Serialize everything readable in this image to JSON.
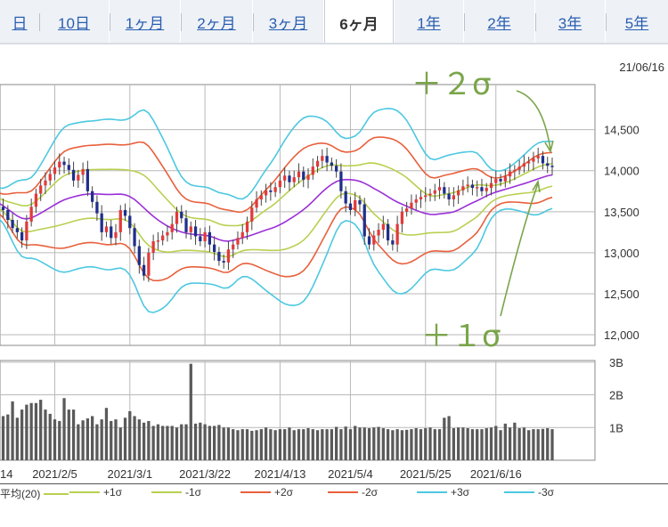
{
  "tabs": [
    {
      "label": "日",
      "active": false
    },
    {
      "label": "10日",
      "active": false
    },
    {
      "label": "1ヶ月",
      "active": false
    },
    {
      "label": "2ヶ月",
      "active": false
    },
    {
      "label": "3ヶ月",
      "active": false
    },
    {
      "label": "6ヶ月",
      "active": true
    },
    {
      "label": "1年",
      "active": false
    },
    {
      "label": "2年",
      "active": false
    },
    {
      "label": "3年",
      "active": false
    },
    {
      "label": "5年",
      "active": false
    }
  ],
  "chart_data": {
    "type": "candlestick",
    "current_date": "21/06/16",
    "y_ticks": [
      "14,500",
      "14,000",
      "13,500",
      "13,000",
      "12,500",
      "12,000"
    ],
    "y_tick_values": [
      14500,
      14000,
      13500,
      13000,
      12500,
      12000
    ],
    "ylim": [
      11870,
      15050
    ],
    "x_tick_labels": [
      "14",
      "2021/2/5",
      "2021/3/1",
      "2021/3/22",
      "2021/4/13",
      "2021/5/4",
      "2021/5/25",
      "2021/6/16"
    ],
    "sessions": 120,
    "x_tick_sessions": [
      0,
      13,
      29,
      45,
      61,
      76,
      92,
      107
    ],
    "close": [
      13650,
      13560,
      13520,
      13400,
      13300,
      13250,
      13150,
      13380,
      13560,
      13720,
      13820,
      13880,
      13960,
      14040,
      14110,
      14070,
      14010,
      13880,
      13950,
      14020,
      13750,
      13620,
      13480,
      13250,
      13320,
      13180,
      13250,
      13520,
      13450,
      13300,
      13080,
      12850,
      12720,
      13000,
      13140,
      13150,
      13210,
      13250,
      13350,
      13500,
      13420,
      13250,
      13320,
      13200,
      13140,
      13250,
      13100,
      13010,
      12900,
      12880,
      13040,
      13100,
      13180,
      13250,
      13380,
      13550,
      13650,
      13700,
      13760,
      13740,
      13800,
      13880,
      13940,
      13860,
      13920,
      13990,
      13890,
      13950,
      14050,
      14120,
      14180,
      14100,
      14060,
      13990,
      13750,
      13600,
      13520,
      13640,
      13590,
      13200,
      13100,
      13210,
      13280,
      13350,
      13150,
      13100,
      13350,
      13500,
      13540,
      13610,
      13650,
      13680,
      13700,
      13720,
      13760,
      13800,
      13720,
      13650,
      13700,
      13760,
      13810,
      13830,
      13790,
      13800,
      13750,
      13790,
      13850,
      13900,
      13870,
      13930,
      13990,
      14010,
      14050,
      14090,
      14110,
      14150,
      14180,
      14090,
      14060,
      14050
    ],
    "volume_ticks": [
      "3B",
      "2B",
      "1B"
    ],
    "volume_tick_values": [
      3.0,
      2.0,
      1.0
    ],
    "volume": [
      1.7,
      1.65,
      1.35,
      1.4,
      1.8,
      1.3,
      1.55,
      1.7,
      1.75,
      1.75,
      1.85,
      1.55,
      1.42,
      1.25,
      1.2,
      1.9,
      1.55,
      1.55,
      1.1,
      1.22,
      1.28,
      1.35,
      1.1,
      1.25,
      1.6,
      1.2,
      1.25,
      1.0,
      1.3,
      1.5,
      1.35,
      1.25,
      1.15,
      1.2,
      1.05,
      1.1,
      1.05,
      1.05,
      1.05,
      1.0,
      1.1,
      1.1,
      2.95,
      1.12,
      1.15,
      1.1,
      1.05,
      1.05,
      1.08,
      1.0,
      1.0,
      0.95,
      0.92,
      0.95,
      0.95,
      0.9,
      0.92,
      0.95,
      1.0,
      0.95,
      0.92,
      0.95,
      0.95,
      1.0,
      0.92,
      0.95,
      0.95,
      0.98,
      0.95,
      0.92,
      0.95,
      0.95,
      0.95,
      1.02,
      0.95,
      1.03,
      0.95,
      1.05,
      1.0,
      1.0,
      0.98,
      1.0,
      1.02,
      0.98,
      0.95,
      0.92,
      0.95,
      0.92,
      0.93,
      0.95,
      0.98,
      0.95,
      0.98,
      1.0,
      0.95,
      0.95,
      1.3,
      1.35,
      0.98,
      1.0,
      1.0,
      0.98,
      0.95,
      0.95,
      0.95,
      0.98,
      1.0,
      1.05,
      0.92,
      1.12,
      1.0,
      1.15,
      0.98,
      1.0,
      0.92,
      0.95,
      0.95,
      0.96,
      0.98,
      0.95
    ],
    "volume_ylim": [
      0,
      3.05
    ],
    "legend": [
      {
        "label": "平均(20)",
        "color": "#9b30d8"
      },
      {
        "label": "+1σ",
        "color": "#b8d050"
      },
      {
        "label": "-1σ",
        "color": "#b8d050"
      },
      {
        "label": "+2σ",
        "color": "#e8603c"
      },
      {
        "label": "-2σ",
        "color": "#e8603c"
      },
      {
        "label": "+3σ",
        "color": "#4cc8e0"
      },
      {
        "label": "-3σ",
        "color": "#4cc8e0"
      }
    ],
    "annotations": [
      {
        "text": "＋２σ",
        "color": "#7aa54a"
      },
      {
        "text": "＋１σ",
        "color": "#7aa54a"
      }
    ],
    "colors": {
      "up": "#e23a3a",
      "down": "#1f2f8a",
      "grid": "#b9b9b9",
      "volume": "#5a5a5a"
    }
  }
}
